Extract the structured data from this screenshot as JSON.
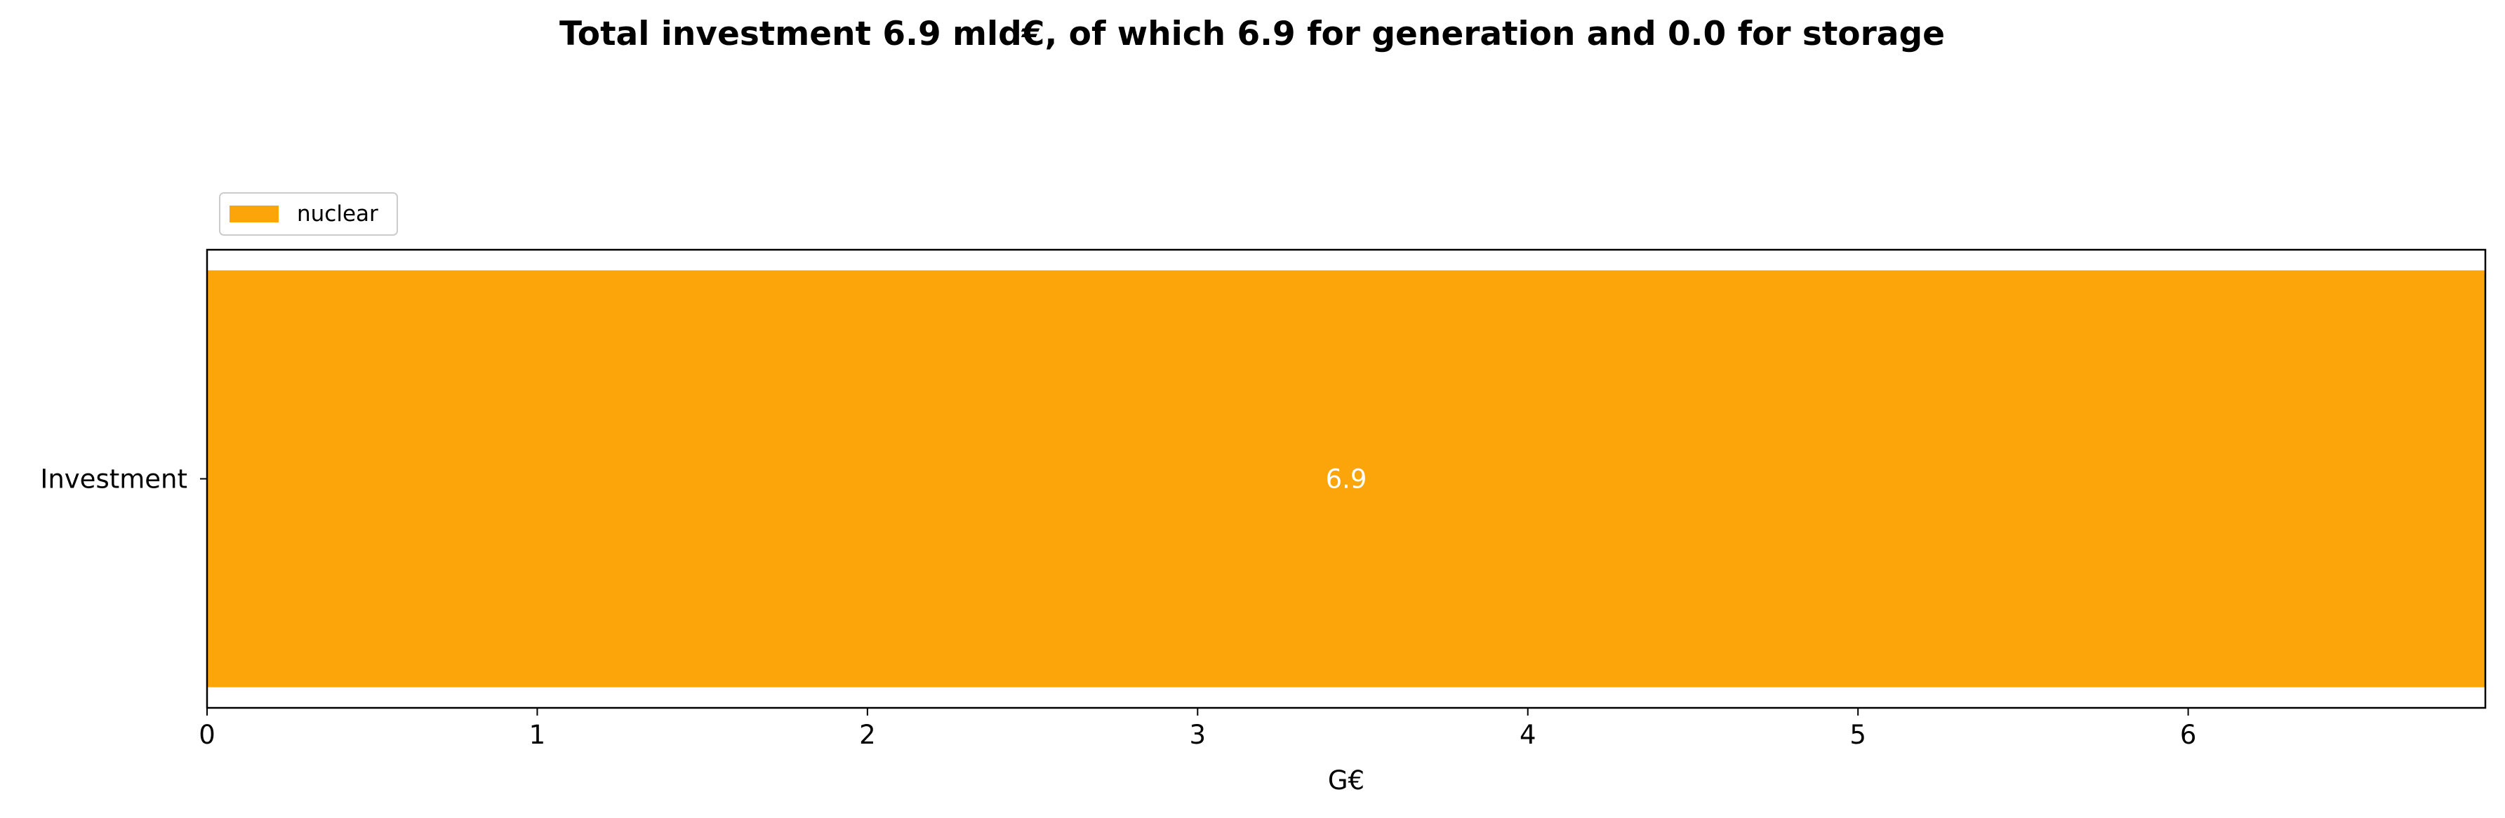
{
  "chart_data": {
    "type": "bar",
    "orientation": "horizontal",
    "stacked": true,
    "title": "Total investment 6.9 mld€, of which 6.9 for generation and 0.0 for storage",
    "xlabel": "G€",
    "ylabel": "",
    "categories": [
      "Investment"
    ],
    "series": [
      {
        "name": "nuclear",
        "values": [
          6.9
        ],
        "color": "#fca50a",
        "labels": [
          "6.9"
        ]
      }
    ],
    "xlim": [
      0,
      6.9
    ],
    "xticks": [
      0,
      1,
      2,
      3,
      4,
      5,
      6
    ],
    "legend_position": "top-left",
    "grid": false
  }
}
